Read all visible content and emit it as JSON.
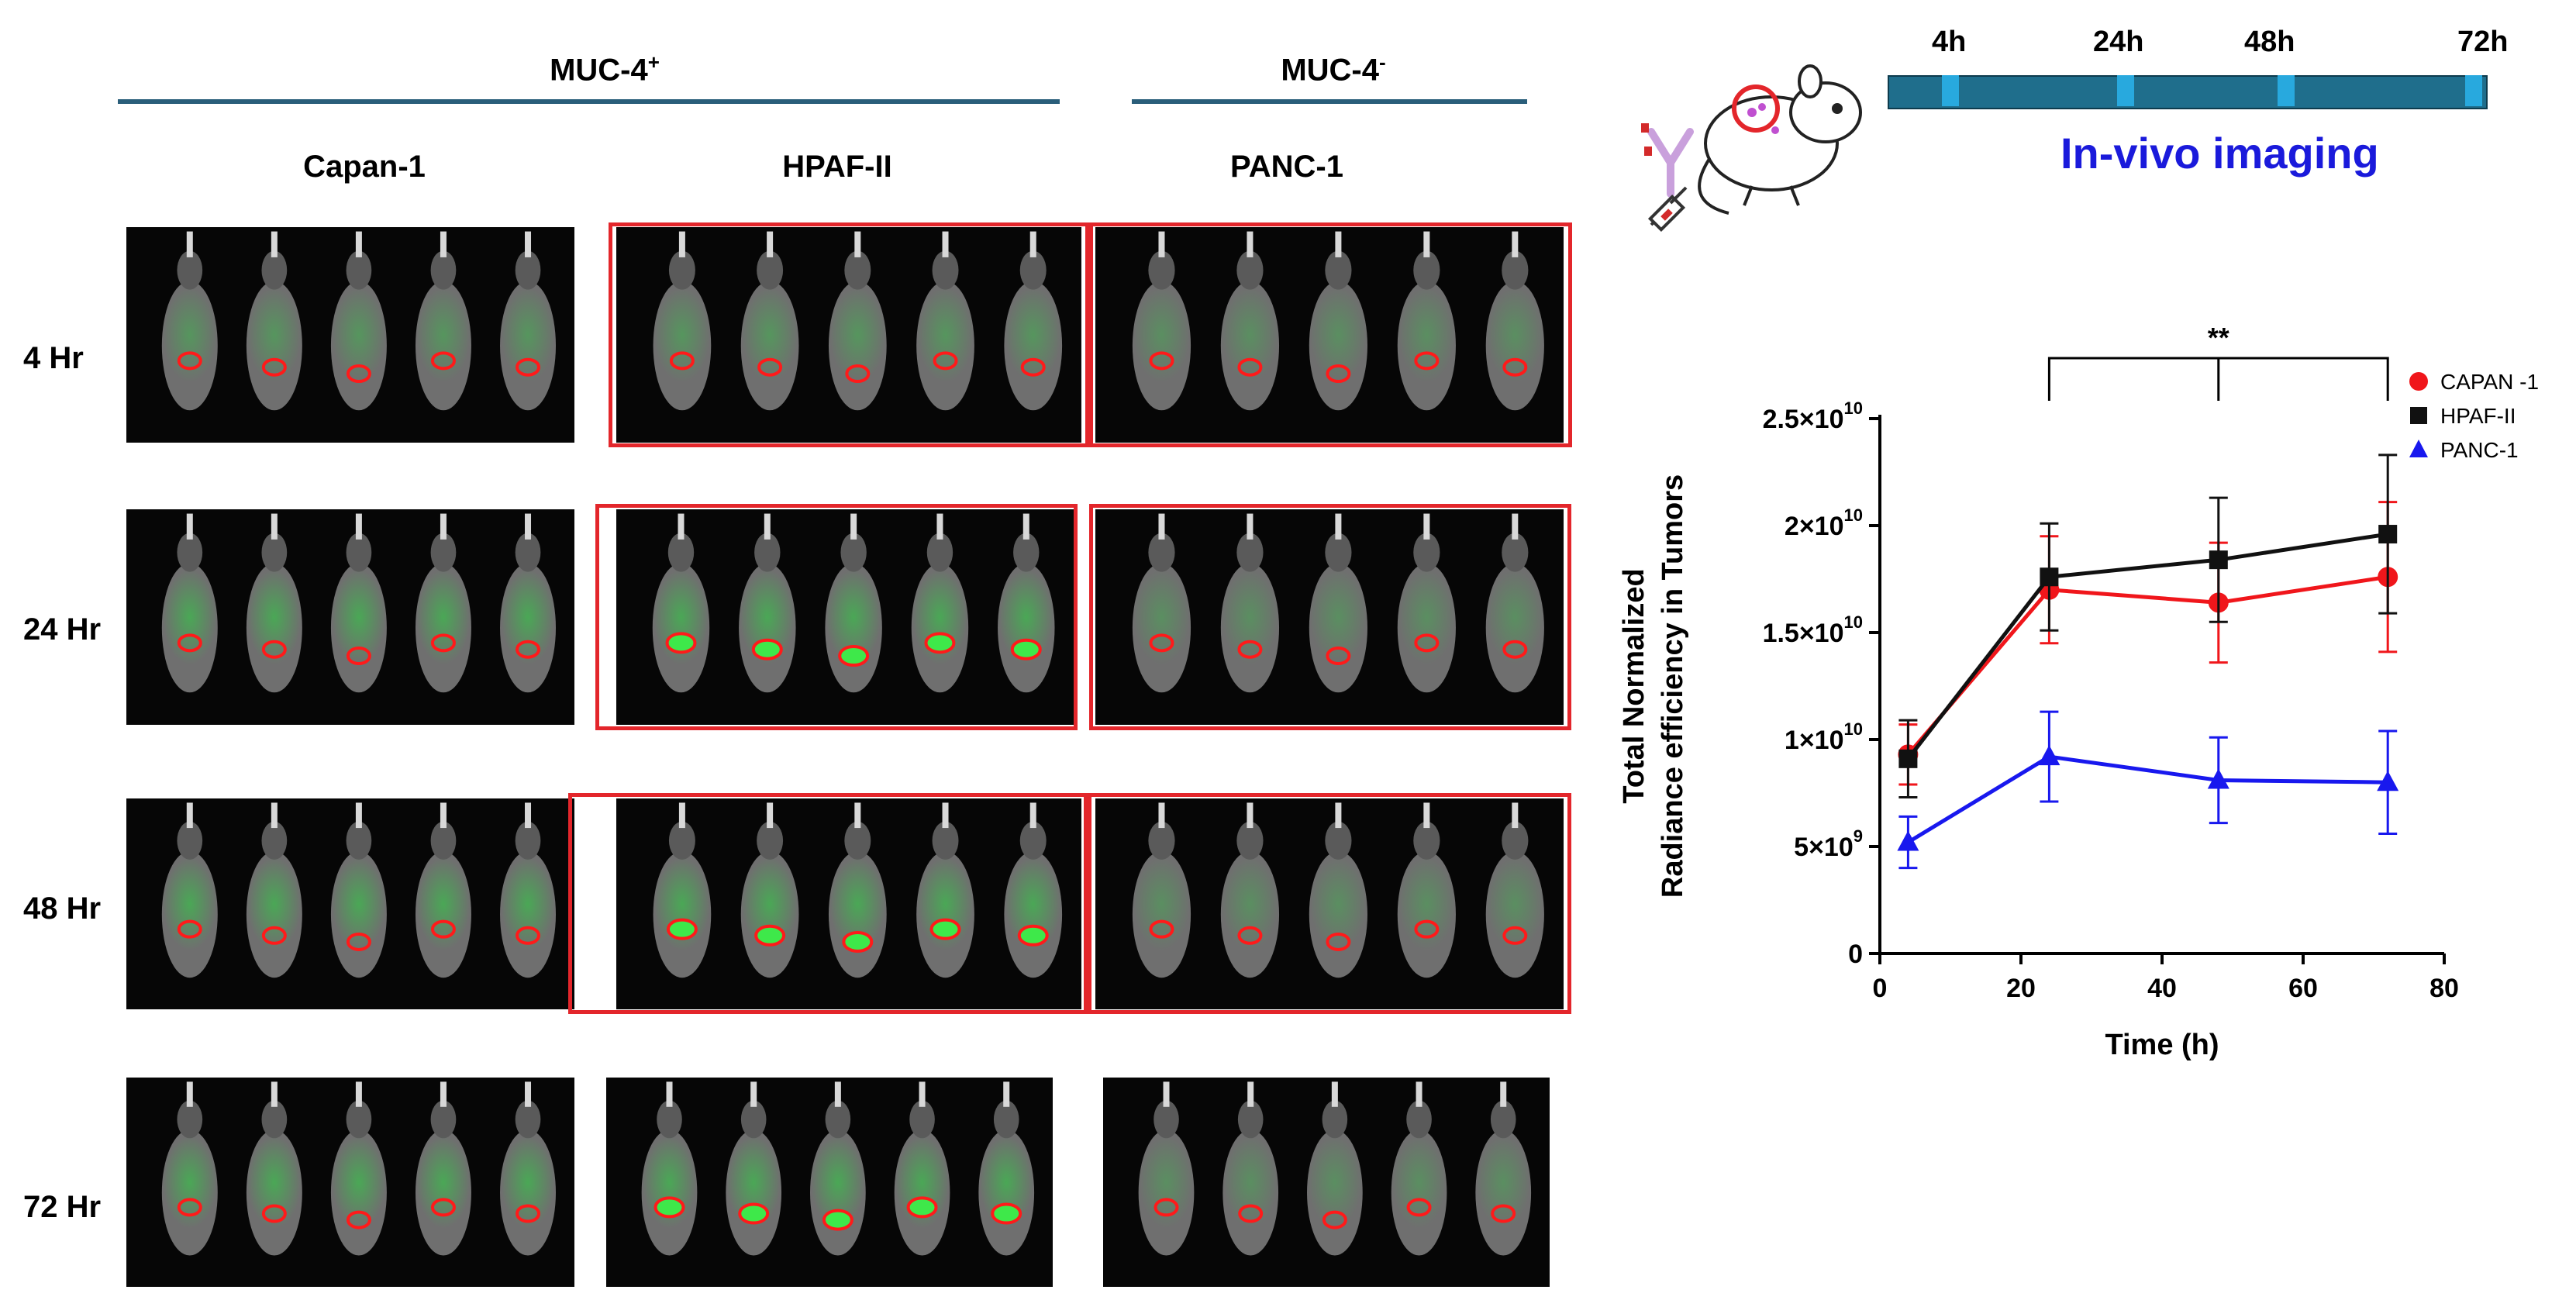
{
  "columns": {
    "muc4_pos": "MUC-4",
    "muc4_pos_sup": "+",
    "muc4_neg": "MUC-4",
    "muc4_neg_sup": "-",
    "capan": "Capan-1",
    "hpaf": "HPAF-II",
    "panc": "PANC-1"
  },
  "rows": [
    "4 Hr",
    "24 Hr",
    "48 Hr",
    "72 Hr"
  ],
  "timeline": {
    "labels": [
      "4h",
      "24h",
      "48h",
      "72h"
    ],
    "title": "In-vivo imaging"
  },
  "colors": {
    "capan": "#f0161b",
    "hpaf": "#111111",
    "panc": "#1818ee",
    "rule": "#2a5e7a",
    "timeline": "#1f6e8c",
    "tick": "#28a9de"
  },
  "chart_data": {
    "type": "line",
    "title": "",
    "xlabel": "Time (h)",
    "ylabel_line1": "Total Normalized",
    "ylabel_line2": "Radiance efficiency in  Tumors",
    "xlim": [
      0,
      80
    ],
    "ylim": [
      0,
      25000000000
    ],
    "x_ticks": [
      "0",
      "20",
      "40",
      "60",
      "80"
    ],
    "y_ticks": [
      {
        "base": "0",
        "exp": ""
      },
      {
        "base": "5×10",
        "exp": "9"
      },
      {
        "base": "1×10",
        "exp": "10"
      },
      {
        "base": "1.5×10",
        "exp": "10"
      },
      {
        "base": "2×10",
        "exp": "10"
      },
      {
        "base": "2.5×10",
        "exp": "10"
      }
    ],
    "significance": "**",
    "x": [
      4,
      24,
      48,
      72
    ],
    "series": [
      {
        "name": "CAPAN -1",
        "key": "capan",
        "marker": "circle",
        "values": [
          9300000000,
          17000000000,
          16400000000,
          17600000000
        ],
        "err": [
          1400000000,
          2500000000,
          2800000000,
          3500000000
        ]
      },
      {
        "name": "HPAF-II",
        "key": "hpaf",
        "marker": "square",
        "values": [
          9100000000,
          17600000000,
          18400000000,
          19600000000
        ],
        "err": [
          1800000000,
          2500000000,
          2900000000,
          3700000000
        ]
      },
      {
        "name": "PANC-1",
        "key": "panc",
        "marker": "triangle",
        "values": [
          5200000000,
          9200000000,
          8100000000,
          8000000000
        ],
        "err": [
          1200000000,
          2100000000,
          2000000000,
          2400000000
        ]
      }
    ]
  }
}
